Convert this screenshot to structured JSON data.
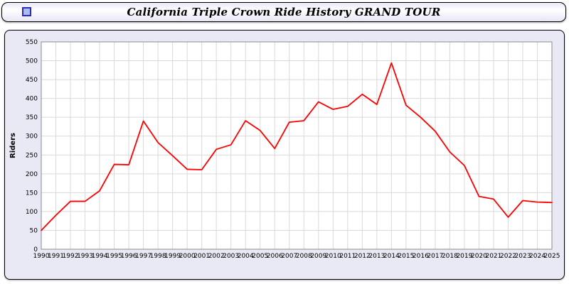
{
  "header": {
    "title": "California Triple Crown Ride History GRAND TOUR",
    "icon": "blue-square-icon"
  },
  "colors": {
    "panel_bg": "#e9e9f6",
    "plot_bg": "#ffffff",
    "grid": "#d9d9d9",
    "axis": "#8a8a8a",
    "line": "#ff0000",
    "text": "#000000"
  },
  "chart_data": {
    "type": "line",
    "title": "California Triple Crown Ride History GRAND TOUR",
    "xlabel": "",
    "ylabel": "Riders",
    "ylim": [
      0,
      550
    ],
    "ytick_step": 50,
    "grid": true,
    "legend_position": "none",
    "categories": [
      1990,
      1991,
      1992,
      1993,
      1994,
      1995,
      1996,
      1997,
      1998,
      1999,
      2000,
      2001,
      2002,
      2003,
      2004,
      2005,
      2006,
      2007,
      2008,
      2009,
      2010,
      2011,
      2012,
      2013,
      2014,
      2015,
      2016,
      2017,
      2018,
      2019,
      2020,
      2021,
      2022,
      2023,
      2024,
      2025
    ],
    "series": [
      {
        "name": "Riders",
        "color": "#ff0000",
        "values": [
          50,
          90,
          127,
          127,
          155,
          225,
          224,
          340,
          283,
          248,
          212,
          211,
          265,
          277,
          341,
          315,
          267,
          337,
          341,
          391,
          371,
          379,
          411,
          384,
          494,
          382,
          350,
          313,
          258,
          222,
          140,
          133,
          85,
          129,
          125,
          124
        ]
      }
    ]
  }
}
